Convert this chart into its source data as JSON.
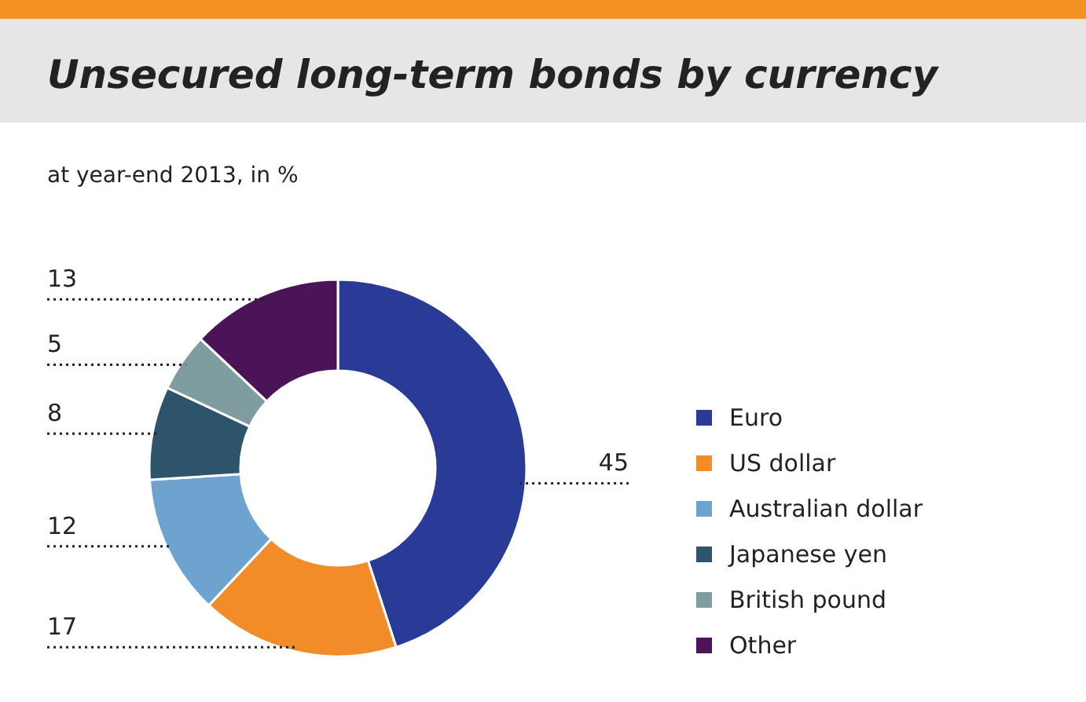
{
  "chart_data": {
    "type": "donut",
    "title": "Unsecured long-term bonds by currency",
    "subtitle": "at year-end 2013, in %",
    "categories": [
      "Euro",
      "US dollar",
      "Australian dollar",
      "Japanese yen",
      "British pound",
      "Other"
    ],
    "values": [
      45,
      17,
      12,
      8,
      5,
      13
    ],
    "colors": [
      "#2a3b97",
      "#f28c28",
      "#6ea2cf",
      "#2e546c",
      "#7f9ca0",
      "#4b1458"
    ],
    "data_labels": true,
    "legend": "right"
  }
}
